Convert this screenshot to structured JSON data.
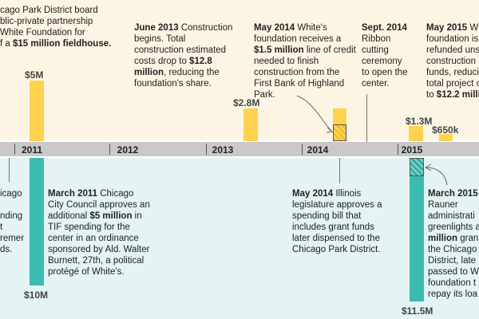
{
  "chart_data": {
    "type": "bar",
    "x_axis_years": [
      "2011",
      "2012",
      "2013",
      "2014",
      "2015"
    ],
    "top_series": {
      "values_labeled": [
        "$5M",
        "$2.8M",
        "$1.3M",
        "$650k"
      ],
      "values_millions": [
        5,
        2.8,
        1.3,
        0.65
      ]
    },
    "bottom_series": {
      "values_labeled": [
        "$10M",
        "$11.5M"
      ],
      "values_millions": [
        10,
        11.5
      ]
    }
  },
  "notes": {
    "board_1": "cago Park District board",
    "board_2": "blic-private partnership",
    "board_3": "White Foundation for",
    "board_4_prefix": "f a ",
    "board_4_bold": "$15 million fieldhouse.",
    "jun2013_date": "June 2013",
    "jun2013_a": " Construction begins. Total construction estimated costs drop to ",
    "jun2013_bold": "$12.8 million",
    "jun2013_b": ", reducing the foundation's share.",
    "may2014_date": "May 2014",
    "may2014_a": " White's foundation receives a ",
    "may2014_bold": "$1.5 million",
    "may2014_b": " line of credit needed to finish construction from the First Bank of Highland Park.",
    "sep2014_date": "Sept. 2014",
    "sep2014_a": " Ribbon cutting ceremony to open the center.",
    "may2015_1_bold": "May 2015",
    "may2015_1_rest": " W",
    "may2015_2": "foundation is",
    "may2015_3": "refunded unsp",
    "may2015_4": "construction",
    "may2015_5": "funds, reducin",
    "may2015_6": "total project c",
    "may2015_7_prefix": "to ",
    "may2015_7_bold": "$12.2 millio",
    "left_1": "icago",
    "left_2": "nding",
    "left_3": "t",
    "left_4": "rement",
    "left_5": "ds.",
    "mar2011_date": "March 2011",
    "mar2011_a": " Chicago City Council approves an additional ",
    "mar2011_bold": "$5 million",
    "mar2011_b": " in TIF spending for the center in an ordinance sponsored by Ald. Walter Burnett, 27th, a political protégé of White's.",
    "may2014il_date": "May 2014",
    "may2014il_a": " Illinois legislature approves a spending bill that includes grant funds later dispensed to the Chicago Park District.",
    "mar2015_1": "March 2015",
    "mar2015_2": "Rauner",
    "mar2015_3": "administrati",
    "mar2015_4": "greenlights a",
    "mar2015_5_bold": "million",
    "mar2015_5_rest": " gran",
    "mar2015_6": "the Chicago",
    "mar2015_7": "District, late",
    "mar2015_8": "passed to Wh",
    "mar2015_9": "foundation t",
    "mar2015_10": "repay its loa"
  }
}
